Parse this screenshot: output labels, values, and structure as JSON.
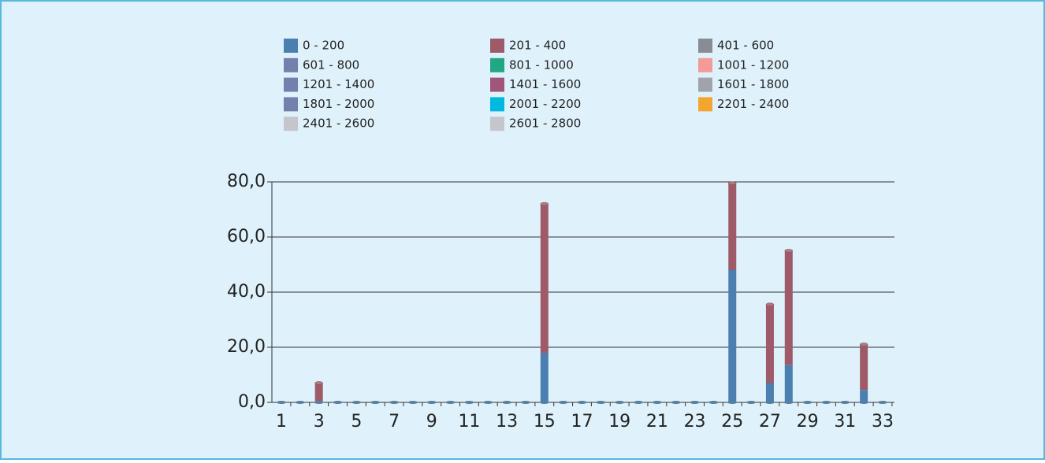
{
  "chart_data": {
    "type": "stacked_bar",
    "categories": [
      "1",
      null,
      "3",
      null,
      "5",
      null,
      "7",
      null,
      "9",
      null,
      "11",
      null,
      "13",
      null,
      "15",
      null,
      "17",
      null,
      "19",
      null,
      "21",
      null,
      "23",
      null,
      "25",
      null,
      "27",
      null,
      "29",
      null,
      "31",
      null,
      "33"
    ],
    "ylim": [
      0,
      80
    ],
    "yticks": [
      {
        "value": 0,
        "label": "0,0"
      },
      {
        "value": 20,
        "label": "20,0"
      },
      {
        "value": 40,
        "label": "40,0"
      },
      {
        "value": 60,
        "label": "60,0"
      },
      {
        "value": 80,
        "label": "80,0"
      }
    ],
    "grid": true,
    "series": [
      {
        "name": "0 - 200",
        "color": "#4a7fb0",
        "values": [
          0,
          0,
          0.5,
          0,
          0,
          0,
          0,
          0,
          0,
          0,
          0,
          0,
          0,
          0,
          18,
          0,
          0,
          0,
          0,
          0,
          0,
          0,
          0,
          0,
          48,
          0,
          7,
          13.5,
          0,
          0,
          0,
          4.5,
          0
        ]
      },
      {
        "name": "201 - 400",
        "color": "#9e5a68",
        "values": [
          0,
          0,
          6.5,
          0,
          0,
          0,
          0,
          0,
          0,
          0,
          0,
          0,
          0,
          0,
          54,
          0,
          0,
          0,
          0,
          0,
          0,
          0,
          0,
          0,
          31.5,
          0,
          28.5,
          41.5,
          0,
          0,
          0,
          16.5,
          0
        ]
      },
      {
        "name": "401 - 600",
        "color": "#888c94",
        "values": [
          0,
          0,
          0,
          0,
          0,
          0,
          0,
          0,
          0,
          0,
          0,
          0,
          0,
          0,
          0,
          0,
          0,
          0,
          0,
          0,
          0,
          0,
          0,
          0,
          0,
          0,
          0,
          0,
          0,
          0,
          0,
          0,
          0
        ]
      },
      {
        "name": "601 - 800",
        "color": "#7280ad",
        "values": [
          0,
          0,
          0,
          0,
          0,
          0,
          0,
          0,
          0,
          0,
          0,
          0,
          0,
          0,
          0,
          0,
          0,
          0,
          0,
          0,
          0,
          0,
          0,
          0,
          0,
          0,
          0,
          0,
          0,
          0,
          0,
          0,
          0
        ]
      },
      {
        "name": "801 - 1000",
        "color": "#22a784",
        "values": [
          0,
          0,
          0,
          0,
          0,
          0,
          0,
          0,
          0,
          0,
          0,
          0,
          0,
          0,
          0,
          0,
          0,
          0,
          0,
          0,
          0,
          0,
          0,
          0,
          0,
          0,
          0,
          0,
          0,
          0,
          0,
          0,
          0
        ]
      },
      {
        "name": "1001 - 1200",
        "color": "#f49a98",
        "values": [
          0,
          0,
          0,
          0,
          0,
          0,
          0,
          0,
          0,
          0,
          0,
          0,
          0,
          0,
          0,
          0,
          0,
          0,
          0,
          0,
          0,
          0,
          0,
          0,
          0,
          0,
          0,
          0,
          0,
          0,
          0,
          0,
          0
        ]
      },
      {
        "name": "1201 - 1400",
        "color": "#7280ad",
        "values": [
          0,
          0,
          0,
          0,
          0,
          0,
          0,
          0,
          0,
          0,
          0,
          0,
          0,
          0,
          0,
          0,
          0,
          0,
          0,
          0,
          0,
          0,
          0,
          0,
          0,
          0,
          0,
          0,
          0,
          0,
          0,
          0,
          0
        ]
      },
      {
        "name": "1401 - 1600",
        "color": "#a0567a",
        "values": [
          0,
          0,
          0,
          0,
          0,
          0,
          0,
          0,
          0,
          0,
          0,
          0,
          0,
          0,
          0,
          0,
          0,
          0,
          0,
          0,
          0,
          0,
          0,
          0,
          0,
          0,
          0,
          0,
          0,
          0,
          0,
          0,
          0
        ]
      },
      {
        "name": "1601 - 1800",
        "color": "#a0a4aa",
        "values": [
          0,
          0,
          0,
          0,
          0,
          0,
          0,
          0,
          0,
          0,
          0,
          0,
          0,
          0,
          0,
          0,
          0,
          0,
          0,
          0,
          0,
          0,
          0,
          0,
          0,
          0,
          0,
          0,
          0,
          0,
          0,
          0,
          0
        ]
      },
      {
        "name": "1801 - 2000",
        "color": "#7280ad",
        "values": [
          0,
          0,
          0,
          0,
          0,
          0,
          0,
          0,
          0,
          0,
          0,
          0,
          0,
          0,
          0,
          0,
          0,
          0,
          0,
          0,
          0,
          0,
          0,
          0,
          0,
          0,
          0,
          0,
          0,
          0,
          0,
          0,
          0
        ]
      },
      {
        "name": "2001 - 2200",
        "color": "#00b8e0",
        "values": [
          0,
          0,
          0,
          0,
          0,
          0,
          0,
          0,
          0,
          0,
          0,
          0,
          0,
          0,
          0,
          0,
          0,
          0,
          0,
          0,
          0,
          0,
          0,
          0,
          0,
          0,
          0,
          0,
          0,
          0,
          0,
          0,
          0
        ]
      },
      {
        "name": "2201 - 2400",
        "color": "#f4a530",
        "values": [
          0,
          0,
          0,
          0,
          0,
          0,
          0,
          0,
          0,
          0,
          0,
          0,
          0,
          0,
          0,
          0,
          0,
          0,
          0,
          0,
          0,
          0,
          0,
          0,
          0,
          0,
          0,
          0,
          0,
          0,
          0,
          0,
          0
        ]
      },
      {
        "name": "2401 - 2600",
        "color": "#c4c6cc",
        "values": [
          0,
          0,
          0,
          0,
          0,
          0,
          0,
          0,
          0,
          0,
          0,
          0,
          0,
          0,
          0,
          0,
          0,
          0,
          0,
          0,
          0,
          0,
          0,
          0,
          0,
          0,
          0,
          0,
          0,
          0,
          0,
          0,
          0
        ]
      },
      {
        "name": "2601 - 2800",
        "color": "#c4c6cc",
        "values": [
          0,
          0,
          0,
          0,
          0,
          0,
          0,
          0,
          0,
          0,
          0,
          0,
          0,
          0,
          0,
          0,
          0,
          0,
          0,
          0,
          0,
          0,
          0,
          0,
          0,
          0,
          0,
          0,
          0,
          0,
          0,
          0,
          0
        ]
      }
    ]
  }
}
